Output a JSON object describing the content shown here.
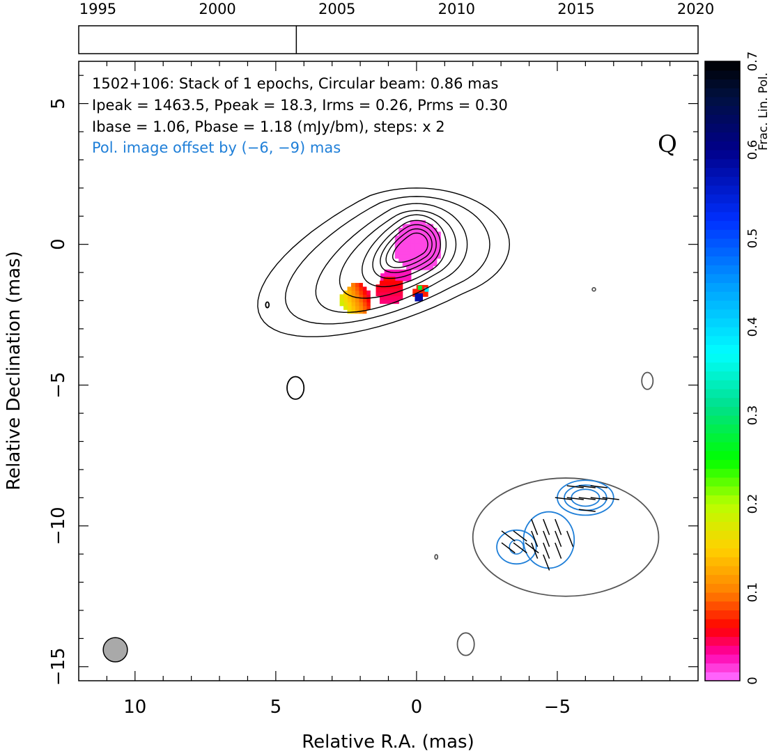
{
  "chart_data": {
    "type": "contour-map",
    "title": "",
    "xlabel": "Relative R.A. (mas)",
    "ylabel": "Relative Declination (mas)",
    "xlim": [
      12,
      -10
    ],
    "ylim": [
      -15.5,
      6.5
    ],
    "x_ticks": [
      10,
      5,
      0,
      -5
    ],
    "x_tick_labels": [
      "10",
      "5",
      "0",
      "−5"
    ],
    "y_ticks": [
      5,
      0,
      -5,
      -10,
      -15
    ],
    "y_tick_labels": [
      "5",
      "0",
      "−5",
      "−10",
      "−15"
    ],
    "annotations": [
      "1502+106: Stack of 1 epochs, Circular beam: 0.86 mas",
      "Ipeak = 1463.5, Ppeak = 18.3, Irms = 0.26, Prms = 0.30",
      "Ibase = 1.06, Pbase = 1.18 (mJy/bm), steps: x 2",
      "Pol. image offset by (−6, −9) mas"
    ],
    "quality_grade": "Q",
    "beam": {
      "x": 10.7,
      "y": -14.4,
      "diameter_mas": 0.86
    },
    "source_center": {
      "x": 0,
      "y": 0
    },
    "pol_offset": {
      "x": -6,
      "y": -9
    },
    "stokes_i_contours": 9,
    "pol_contours": 3,
    "timeline": {
      "years": [
        1995,
        2000,
        2005,
        2010,
        2015,
        2020
      ],
      "year_labels": [
        "1995",
        "2000",
        "2005",
        "2010",
        "2015",
        "2020"
      ],
      "range": [
        1994.2,
        2020.1
      ],
      "epochs": [
        2003.3
      ]
    },
    "colorbar": {
      "label": "Frac. Lin. Pol.",
      "range": [
        0,
        0.7
      ],
      "ticks": [
        0,
        0.1,
        0.2,
        0.3,
        0.4,
        0.5,
        0.6,
        0.7
      ],
      "tick_labels": [
        "0",
        "0.1",
        "0.2",
        "0.3",
        "0.4",
        "0.5",
        "0.6",
        "0.7"
      ]
    },
    "colors": {
      "stokes_i_contour": "#000000",
      "pol_contour": "#1f7fd8",
      "offset_total_contour": "#555555",
      "annotation_pol": "#1f7fd8",
      "beam_fill": "#a9a9a9"
    }
  }
}
